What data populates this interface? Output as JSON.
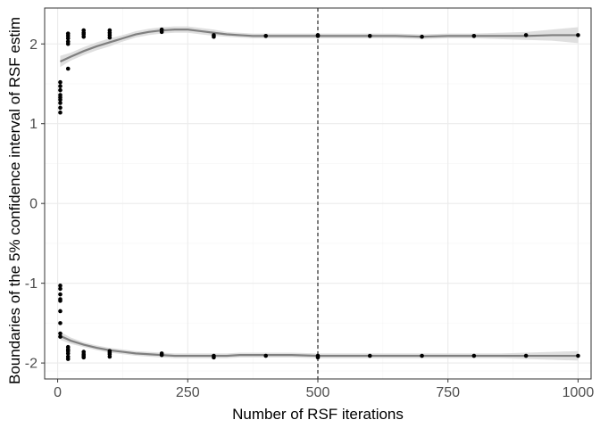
{
  "chart_data": {
    "type": "scatter",
    "title": "",
    "xlabel": "Number of RSF iterations",
    "ylabel": "Boundaries of the 5% confidence interval of RSF estim",
    "xlim": [
      -25,
      1025
    ],
    "ylim": [
      -2.2,
      2.45
    ],
    "x_ticks": [
      "0",
      "250",
      "500",
      "750",
      "1000"
    ],
    "x_tick_values": [
      0,
      250,
      500,
      750,
      1000
    ],
    "y_ticks": [
      "-2",
      "-1",
      "0",
      "1",
      "2"
    ],
    "y_tick_values": [
      -2,
      -1,
      0,
      1,
      2
    ],
    "grid": true,
    "reference_line": {
      "x": 500,
      "style": "dashed"
    },
    "series": [
      {
        "kind": "points",
        "x": [
          5,
          5,
          5,
          5,
          5,
          5,
          5,
          5,
          5,
          5,
          5,
          5,
          5,
          5,
          5,
          5,
          5,
          5,
          20,
          20,
          20,
          20,
          20,
          20,
          20,
          20,
          20,
          20,
          20,
          20,
          50,
          50,
          50,
          50,
          50,
          50,
          50,
          50,
          100,
          100,
          100,
          100,
          100,
          100,
          100,
          100,
          200,
          200,
          200,
          200,
          300,
          300,
          300,
          300,
          400,
          400,
          500,
          500,
          500,
          500,
          600,
          600,
          700,
          700,
          800,
          800,
          900,
          900,
          1000,
          1000
        ],
        "y": [
          1.52,
          1.47,
          1.42,
          1.36,
          1.33,
          1.3,
          1.26,
          1.2,
          1.14,
          -1.03,
          -1.07,
          -1.14,
          -1.22,
          -1.35,
          -1.5,
          -1.63,
          -1.67,
          -1.2,
          2.13,
          2.1,
          2.07,
          2.03,
          2.0,
          1.69,
          -1.8,
          -1.83,
          -1.85,
          -1.88,
          -1.92,
          -1.95,
          2.17,
          2.14,
          2.12,
          2.09,
          -1.86,
          -1.89,
          -1.91,
          -1.93,
          2.17,
          2.14,
          2.11,
          2.08,
          -1.85,
          -1.87,
          -1.89,
          -1.92,
          2.18,
          2.15,
          -1.88,
          -1.9,
          2.11,
          2.09,
          -1.91,
          -1.93,
          2.1,
          -1.91,
          2.11,
          2.1,
          -1.91,
          -1.93,
          2.1,
          -1.91,
          2.09,
          -1.91,
          2.1,
          -1.91,
          2.11,
          -1.91,
          2.11,
          -1.91
        ]
      },
      {
        "kind": "smooth_upper",
        "x": [
          5,
          25,
          50,
          75,
          100,
          125,
          150,
          175,
          200,
          225,
          250,
          275,
          300,
          325,
          350,
          375,
          400,
          450,
          500,
          550,
          600,
          650,
          700,
          750,
          800,
          850,
          900,
          950,
          1000
        ],
        "y": [
          1.78,
          1.84,
          1.91,
          1.97,
          2.02,
          2.07,
          2.12,
          2.15,
          2.17,
          2.18,
          2.18,
          2.16,
          2.14,
          2.12,
          2.11,
          2.1,
          2.1,
          2.1,
          2.1,
          2.1,
          2.1,
          2.1,
          2.09,
          2.1,
          2.1,
          2.1,
          2.1,
          2.11,
          2.11
        ],
        "band_halfwidth": [
          0.07,
          0.05,
          0.05,
          0.05,
          0.05,
          0.04,
          0.04,
          0.04,
          0.04,
          0.04,
          0.04,
          0.04,
          0.04,
          0.03,
          0.03,
          0.03,
          0.03,
          0.03,
          0.03,
          0.03,
          0.03,
          0.03,
          0.03,
          0.03,
          0.03,
          0.04,
          0.05,
          0.07,
          0.1
        ]
      },
      {
        "kind": "smooth_lower",
        "x": [
          5,
          25,
          50,
          75,
          100,
          125,
          150,
          175,
          200,
          225,
          250,
          275,
          300,
          325,
          350,
          375,
          400,
          450,
          500,
          550,
          600,
          650,
          700,
          750,
          800,
          850,
          900,
          950,
          1000
        ],
        "y": [
          -1.66,
          -1.72,
          -1.77,
          -1.81,
          -1.84,
          -1.86,
          -1.88,
          -1.89,
          -1.9,
          -1.91,
          -1.91,
          -1.91,
          -1.91,
          -1.91,
          -1.9,
          -1.9,
          -1.9,
          -1.9,
          -1.91,
          -1.91,
          -1.91,
          -1.91,
          -1.91,
          -1.91,
          -1.91,
          -1.91,
          -1.91,
          -1.91,
          -1.91
        ],
        "band_halfwidth": [
          0.05,
          0.04,
          0.03,
          0.03,
          0.03,
          0.03,
          0.03,
          0.03,
          0.03,
          0.03,
          0.03,
          0.03,
          0.03,
          0.03,
          0.03,
          0.03,
          0.03,
          0.03,
          0.03,
          0.03,
          0.03,
          0.03,
          0.03,
          0.03,
          0.03,
          0.03,
          0.04,
          0.05,
          0.06
        ]
      }
    ],
    "colors": {
      "point": "#000000",
      "smooth_line": "#7f7f7f",
      "band": "#d9d9d9",
      "grid_major": "#ebebeb",
      "grid_minor": "#f4f4f4",
      "panel_border": "#333333",
      "reference_line": "#000000"
    }
  }
}
